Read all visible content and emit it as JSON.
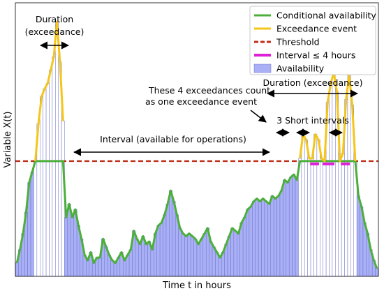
{
  "chart_data": {
    "type": "bar",
    "title": "",
    "xlabel": "Time t in hours",
    "ylabel": "Variable X(t)",
    "ylim": [
      0,
      10
    ],
    "threshold": 4.3,
    "grid": false,
    "legend_position": "top-right",
    "legend": [
      {
        "key": "conditional",
        "label": "Conditional availability",
        "color": "#4caf3a"
      },
      {
        "key": "exceedance",
        "label": "Exceedance event",
        "color": "#f5c518"
      },
      {
        "key": "threshold",
        "label": "Threshold",
        "color": "#c0311b"
      },
      {
        "key": "interval",
        "label": "Interval ≤ 4 hours",
        "color": "#e020d8"
      },
      {
        "key": "availability",
        "label": "Availability",
        "color": "#aab0f5"
      }
    ],
    "values": [
      0.5,
      1.0,
      1.6,
      2.4,
      3.5,
      3.9,
      4.3,
      5.7,
      6.7,
      7.0,
      7.2,
      7.7,
      8.2,
      9.5,
      8.0,
      5.8,
      2.2,
      2.7,
      2.2,
      2.5,
      1.9,
      1.4,
      0.8,
      0.6,
      0.9,
      0.5,
      0.7,
      0.7,
      1.4,
      1.1,
      0.8,
      0.6,
      0.5,
      0.7,
      0.9,
      0.6,
      0.8,
      1.0,
      1.7,
      1.4,
      1.2,
      1.5,
      1.2,
      1.3,
      1.0,
      1.6,
      1.9,
      2.0,
      2.3,
      2.7,
      3.2,
      2.8,
      2.3,
      1.8,
      1.6,
      1.5,
      1.6,
      1.5,
      1.4,
      1.2,
      1.4,
      1.6,
      1.8,
      1.3,
      1.1,
      0.9,
      0.7,
      0.9,
      1.2,
      1.5,
      1.8,
      1.7,
      1.6,
      2.0,
      2.2,
      2.5,
      2.6,
      2.8,
      2.9,
      2.8,
      2.9,
      2.8,
      2.7,
      3.0,
      2.9,
      3.0,
      3.2,
      3.6,
      3.5,
      3.7,
      3.8,
      3.6,
      4.4,
      5.3,
      5.1,
      4.4,
      4.4,
      5.3,
      5.1,
      4.4,
      4.3,
      6.5,
      7.2,
      7.6,
      6.9,
      4.3,
      4.6,
      6.6,
      7.5,
      6.4,
      4.3,
      3.0,
      2.6,
      2.0,
      1.6,
      1.0,
      0.6,
      0.3
    ],
    "exceedance_spans": [
      [
        6,
        15
      ],
      [
        92,
        110
      ]
    ],
    "short_intervals": [
      [
        95,
        99
      ],
      [
        99,
        104
      ],
      [
        105,
        109
      ]
    ]
  },
  "annotations": {
    "duration_left": [
      "Duration",
      "(exceedance)"
    ],
    "interval_available": "Interval (available for operations)",
    "count_note": [
      "These 4 exceedances count",
      "as one exceedance event"
    ],
    "duration_right": "Duration (exceedance)",
    "short_intervals": "3 Short intervals"
  }
}
